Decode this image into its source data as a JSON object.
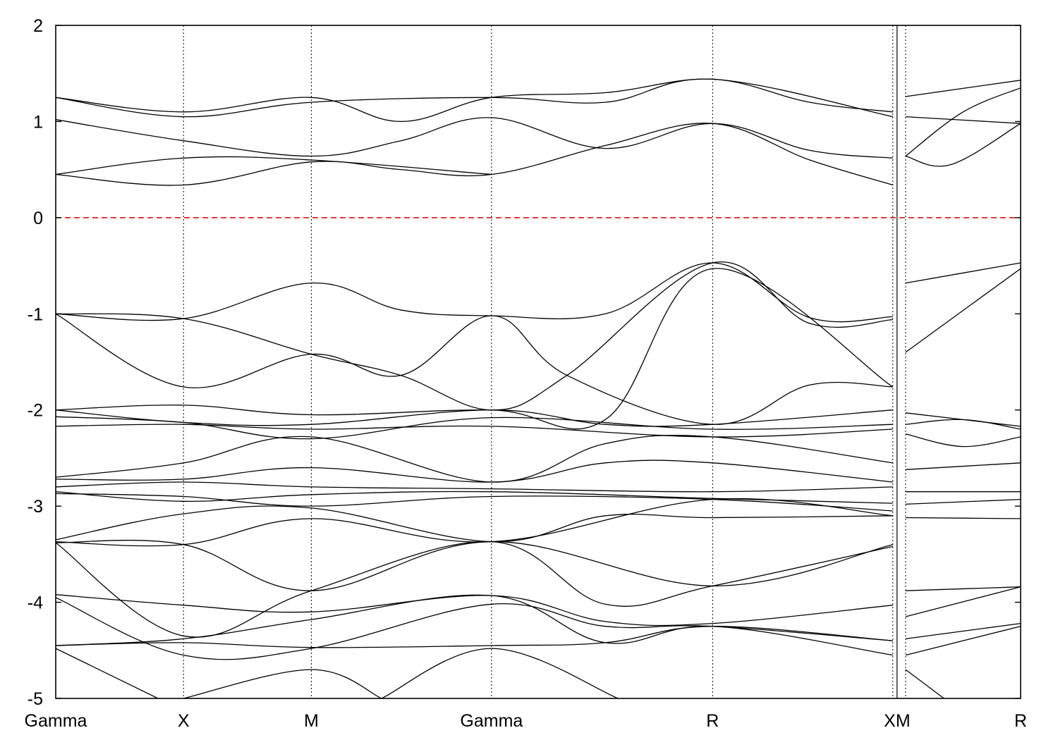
{
  "chart_data": {
    "type": "line",
    "title": "",
    "xlabel": "",
    "ylabel": "",
    "ylim": [
      -5,
      2
    ],
    "yticks": [
      2,
      1,
      0,
      -1,
      -2,
      -3,
      -4,
      -5
    ],
    "grid": "vertical dotted lines at high-symmetry points",
    "legend": "none",
    "fermi_level": {
      "value": 0,
      "color": "#d40000",
      "style": "dashed"
    },
    "line_color": "#000000",
    "kpoints": [
      {
        "label": "Gamma",
        "x": 0.0
      },
      {
        "label": "X",
        "x": 1.0
      },
      {
        "label": "M",
        "x": 2.0
      },
      {
        "label": "Gamma",
        "x": 3.41
      },
      {
        "label": "R",
        "x": 5.14
      },
      {
        "label": "X",
        "x": 6.55
      },
      {
        "label": "M",
        "x": 6.65
      },
      {
        "label": "R",
        "x": 7.55
      }
    ],
    "discontinuity_x": 6.55,
    "xlim": [
      0,
      7.55
    ],
    "series": [
      {
        "segments": [
          [
            0,
            0.45
          ],
          [
            1,
            0.34
          ],
          [
            2,
            0.58
          ],
          [
            2.7,
            0.5
          ],
          [
            3.41,
            0.45
          ],
          [
            4.3,
            0.75
          ],
          [
            5.14,
            0.98
          ],
          [
            5.9,
            0.6
          ],
          [
            6.55,
            0.34
          ]
        ]
      },
      {
        "segments": [
          [
            0,
            0.45
          ],
          [
            1,
            0.62
          ],
          [
            2,
            0.6
          ],
          [
            3.41,
            0.45
          ]
        ]
      },
      {
        "segments": [
          [
            0,
            1.02
          ],
          [
            1,
            0.8
          ],
          [
            2,
            0.64
          ],
          [
            2.7,
            0.8
          ],
          [
            3.41,
            1.04
          ],
          [
            4.3,
            0.72
          ],
          [
            5.14,
            0.98
          ],
          [
            5.9,
            0.7
          ],
          [
            6.55,
            0.62
          ]
        ]
      },
      {
        "segments": [
          [
            0,
            1.25
          ],
          [
            1,
            1.1
          ],
          [
            2,
            1.25
          ],
          [
            2.7,
            1.0
          ],
          [
            3.41,
            1.25
          ],
          [
            4.3,
            1.3
          ],
          [
            5.14,
            1.44
          ],
          [
            5.9,
            1.2
          ],
          [
            6.55,
            1.1
          ]
        ]
      },
      {
        "segments": [
          [
            0,
            1.25
          ],
          [
            1,
            1.05
          ],
          [
            2,
            1.2
          ],
          [
            3.41,
            1.25
          ],
          [
            4.3,
            1.2
          ],
          [
            5.14,
            1.44
          ],
          [
            6.55,
            1.05
          ]
        ]
      },
      {
        "segments": [
          [
            6.65,
            0.64
          ],
          [
            7.0,
            0.55
          ],
          [
            7.55,
            0.98
          ]
        ]
      },
      {
        "segments": [
          [
            6.65,
            1.26
          ],
          [
            7.55,
            1.43
          ]
        ]
      },
      {
        "segments": [
          [
            6.65,
            1.05
          ],
          [
            7.55,
            0.98
          ]
        ]
      },
      {
        "segments": [
          [
            6.65,
            0.64
          ],
          [
            7.1,
            1.1
          ],
          [
            7.55,
            1.35
          ]
        ]
      },
      {
        "segments": [
          [
            0,
            -1.0
          ],
          [
            1,
            -1.05
          ],
          [
            2,
            -0.68
          ],
          [
            2.7,
            -0.96
          ],
          [
            3.41,
            -1.02
          ],
          [
            4.3,
            -1.0
          ],
          [
            5.14,
            -0.47
          ],
          [
            5.9,
            -1.04
          ],
          [
            6.55,
            -1.03
          ]
        ]
      },
      {
        "segments": [
          [
            0,
            -1.0
          ],
          [
            1,
            -1.76
          ],
          [
            2,
            -1.42
          ],
          [
            2.7,
            -1.64
          ],
          [
            3.41,
            -1.02
          ],
          [
            4.0,
            -1.64
          ],
          [
            5.14,
            -2.15
          ],
          [
            5.9,
            -1.74
          ],
          [
            6.55,
            -1.76
          ]
        ]
      },
      {
        "segments": [
          [
            0,
            -1.0
          ],
          [
            1,
            -1.05
          ],
          [
            2,
            -1.42
          ],
          [
            2.7,
            -1.64
          ],
          [
            3.41,
            -2.0
          ],
          [
            4.0,
            -1.64
          ],
          [
            5.14,
            -0.47
          ],
          [
            5.9,
            -1.1
          ],
          [
            6.55,
            -1.06
          ]
        ]
      },
      {
        "segments": [
          [
            0,
            -2.0
          ],
          [
            1,
            -1.95
          ],
          [
            2,
            -2.05
          ],
          [
            3.41,
            -2.0
          ],
          [
            4.3,
            -2.1
          ],
          [
            5.14,
            -0.53
          ],
          [
            6.55,
            -1.76
          ]
        ]
      },
      {
        "segments": [
          [
            0,
            -2.0
          ],
          [
            1,
            -2.13
          ],
          [
            2,
            -2.15
          ],
          [
            3.41,
            -2.0
          ],
          [
            4.3,
            -2.15
          ],
          [
            5.14,
            -2.15
          ],
          [
            6.55,
            -2.0
          ]
        ]
      },
      {
        "segments": [
          [
            0,
            -2.07
          ],
          [
            1,
            -2.13
          ],
          [
            2,
            -2.3
          ],
          [
            3.41,
            -2.08
          ],
          [
            5.14,
            -2.2
          ],
          [
            6.55,
            -2.15
          ]
        ]
      },
      {
        "segments": [
          [
            0,
            -2.17
          ],
          [
            1,
            -2.15
          ],
          [
            2,
            -2.2
          ],
          [
            3.41,
            -2.17
          ],
          [
            5.14,
            -2.28
          ],
          [
            6.55,
            -2.2
          ]
        ]
      },
      {
        "segments": [
          [
            0,
            -2.7
          ],
          [
            1,
            -2.55
          ],
          [
            2,
            -2.28
          ],
          [
            3.41,
            -2.75
          ],
          [
            4.3,
            -2.35
          ],
          [
            5.14,
            -2.28
          ],
          [
            6.55,
            -2.55
          ]
        ]
      },
      {
        "segments": [
          [
            0,
            -2.72
          ],
          [
            1,
            -2.72
          ],
          [
            2,
            -2.6
          ],
          [
            3.41,
            -2.75
          ],
          [
            4.3,
            -2.55
          ],
          [
            5.14,
            -2.55
          ],
          [
            6.55,
            -2.75
          ]
        ]
      },
      {
        "segments": [
          [
            0,
            -2.8
          ],
          [
            1,
            -2.75
          ],
          [
            2,
            -2.8
          ],
          [
            3.41,
            -2.82
          ],
          [
            5.14,
            -2.85
          ],
          [
            6.55,
            -2.8
          ]
        ]
      },
      {
        "segments": [
          [
            0,
            -2.85
          ],
          [
            1,
            -2.95
          ],
          [
            2,
            -2.88
          ],
          [
            3.41,
            -2.85
          ],
          [
            5.14,
            -2.92
          ],
          [
            6.55,
            -2.97
          ]
        ]
      },
      {
        "segments": [
          [
            0,
            -2.87
          ],
          [
            1,
            -2.9
          ],
          [
            2,
            -3.0
          ],
          [
            3.41,
            -2.9
          ],
          [
            5.14,
            -2.93
          ],
          [
            6.55,
            -3.05
          ]
        ]
      },
      {
        "segments": [
          [
            0,
            -3.35
          ],
          [
            1,
            -3.08
          ],
          [
            2,
            -3.02
          ],
          [
            3.41,
            -3.37
          ],
          [
            4.3,
            -3.1
          ],
          [
            5.14,
            -3.12
          ],
          [
            6.55,
            -3.1
          ]
        ]
      },
      {
        "segments": [
          [
            0,
            -3.37
          ],
          [
            1,
            -3.4
          ],
          [
            2,
            -3.13
          ],
          [
            3.41,
            -3.37
          ],
          [
            5.14,
            -2.93
          ],
          [
            6.55,
            -3.1
          ]
        ]
      },
      {
        "segments": [
          [
            0,
            -3.38
          ],
          [
            1,
            -3.4
          ],
          [
            2,
            -3.88
          ],
          [
            3.41,
            -3.37
          ],
          [
            5.14,
            -3.83
          ],
          [
            6.55,
            -3.4
          ]
        ]
      },
      {
        "segments": [
          [
            0,
            -3.38
          ],
          [
            1,
            -4.35
          ],
          [
            2,
            -3.88
          ],
          [
            3.41,
            -3.37
          ],
          [
            4.3,
            -4.02
          ],
          [
            5.14,
            -3.83
          ],
          [
            6.55,
            -3.42
          ]
        ]
      },
      {
        "segments": [
          [
            0,
            -3.92
          ],
          [
            1,
            -4.03
          ],
          [
            2,
            -4.1
          ],
          [
            3.41,
            -3.93
          ],
          [
            4.3,
            -4.2
          ],
          [
            5.14,
            -4.22
          ],
          [
            6.55,
            -4.03
          ]
        ]
      },
      {
        "segments": [
          [
            0,
            -3.95
          ],
          [
            1,
            -4.55
          ],
          [
            2,
            -4.48
          ],
          [
            3.41,
            -4.02
          ],
          [
            4.3,
            -4.25
          ],
          [
            5.14,
            -4.25
          ],
          [
            6.55,
            -4.4
          ]
        ]
      },
      {
        "segments": [
          [
            0,
            -4.45
          ],
          [
            1,
            -4.38
          ],
          [
            2,
            -4.18
          ],
          [
            3.41,
            -3.93
          ],
          [
            4.3,
            -4.42
          ],
          [
            5.14,
            -4.25
          ],
          [
            6.55,
            -4.55
          ]
        ]
      },
      {
        "segments": [
          [
            0,
            -4.45
          ],
          [
            1,
            -4.42
          ],
          [
            2,
            -4.47
          ],
          [
            3.41,
            -4.45
          ],
          [
            4.3,
            -4.42
          ],
          [
            5.14,
            -4.25
          ],
          [
            6.55,
            -4.4
          ]
        ]
      },
      {
        "segments": [
          [
            0,
            -4.48
          ],
          [
            0.8,
            -5.0
          ]
        ]
      },
      {
        "segments": [
          [
            1,
            -5.0
          ],
          [
            2,
            -4.7
          ],
          [
            2.55,
            -5.0
          ]
        ]
      },
      {
        "segments": [
          [
            2.55,
            -5.0
          ],
          [
            3.41,
            -4.48
          ],
          [
            4.4,
            -5.0
          ]
        ]
      },
      {
        "segments": [
          [
            6.65,
            -0.68
          ],
          [
            7.55,
            -0.47
          ]
        ]
      },
      {
        "segments": [
          [
            6.65,
            -1.4
          ],
          [
            7.55,
            -0.53
          ]
        ]
      },
      {
        "segments": [
          [
            6.65,
            -2.03
          ],
          [
            7.55,
            -2.17
          ]
        ]
      },
      {
        "segments": [
          [
            6.65,
            -2.15
          ],
          [
            7.1,
            -2.1
          ],
          [
            7.55,
            -2.2
          ]
        ]
      },
      {
        "segments": [
          [
            6.65,
            -2.25
          ],
          [
            7.1,
            -2.38
          ],
          [
            7.55,
            -2.28
          ]
        ]
      },
      {
        "segments": [
          [
            6.65,
            -2.62
          ],
          [
            7.55,
            -2.55
          ]
        ]
      },
      {
        "segments": [
          [
            6.65,
            -2.85
          ],
          [
            7.55,
            -2.85
          ]
        ]
      },
      {
        "segments": [
          [
            6.65,
            -2.98
          ],
          [
            7.55,
            -2.93
          ]
        ]
      },
      {
        "segments": [
          [
            6.65,
            -3.12
          ],
          [
            7.55,
            -3.13
          ]
        ]
      },
      {
        "segments": [
          [
            6.65,
            -3.88
          ],
          [
            7.55,
            -3.84
          ]
        ]
      },
      {
        "segments": [
          [
            6.65,
            -4.15
          ],
          [
            7.55,
            -3.84
          ]
        ]
      },
      {
        "segments": [
          [
            6.65,
            -4.38
          ],
          [
            7.55,
            -4.22
          ]
        ]
      },
      {
        "segments": [
          [
            6.65,
            -4.55
          ],
          [
            7.55,
            -4.25
          ]
        ]
      },
      {
        "segments": [
          [
            6.65,
            -4.7
          ],
          [
            6.95,
            -5.0
          ]
        ]
      }
    ]
  }
}
